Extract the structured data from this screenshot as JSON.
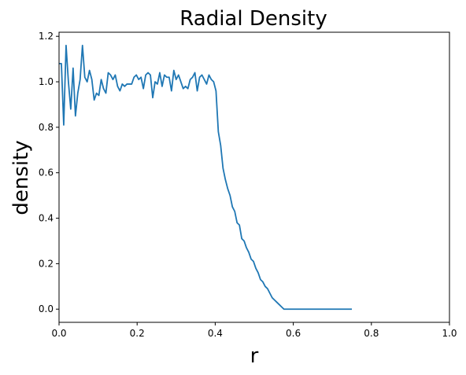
{
  "chart_data": {
    "type": "line",
    "title": "Radial Density",
    "xlabel": "r",
    "ylabel": "density",
    "xlim": [
      0.0,
      1.0
    ],
    "ylim": [
      -0.058,
      1.218
    ],
    "xticks": [
      0.0,
      0.2,
      0.4,
      0.6,
      0.8,
      1.0
    ],
    "xtick_labels": [
      "0.0",
      "0.2",
      "0.4",
      "0.6",
      "0.8",
      "1.0"
    ],
    "yticks": [
      0.0,
      0.2,
      0.4,
      0.6,
      0.8,
      1.0,
      1.2
    ],
    "ytick_labels": [
      "0.0",
      "0.2",
      "0.4",
      "0.6",
      "0.8",
      "1.0",
      "1.2"
    ],
    "grid": false,
    "line_color": "#1f77b4",
    "series": [
      {
        "x": [
          0.0,
          0.006,
          0.012,
          0.018,
          0.024,
          0.03,
          0.036,
          0.042,
          0.048,
          0.054,
          0.06,
          0.066,
          0.072,
          0.078,
          0.084,
          0.09,
          0.096,
          0.102,
          0.108,
          0.114,
          0.12,
          0.126,
          0.132,
          0.138,
          0.144,
          0.15,
          0.156,
          0.162,
          0.168,
          0.174,
          0.18,
          0.186,
          0.192,
          0.198,
          0.204,
          0.21,
          0.216,
          0.222,
          0.228,
          0.234,
          0.24,
          0.246,
          0.252,
          0.258,
          0.264,
          0.27,
          0.276,
          0.282,
          0.288,
          0.294,
          0.3,
          0.306,
          0.312,
          0.318,
          0.324,
          0.33,
          0.336,
          0.342,
          0.348,
          0.354,
          0.36,
          0.366,
          0.372,
          0.378,
          0.384,
          0.39,
          0.396,
          0.402,
          0.408,
          0.414,
          0.42,
          0.426,
          0.432,
          0.438,
          0.444,
          0.45,
          0.456,
          0.462,
          0.468,
          0.474,
          0.48,
          0.486,
          0.492,
          0.498,
          0.504,
          0.51,
          0.516,
          0.522,
          0.528,
          0.534,
          0.54,
          0.546,
          0.552,
          0.558,
          0.564,
          0.57,
          0.576,
          0.582,
          0.588,
          0.594,
          0.6,
          0.606,
          0.612,
          0.618,
          0.624,
          0.63,
          0.636,
          0.642,
          0.648,
          0.654,
          0.66,
          0.666,
          0.672,
          0.678,
          0.684,
          0.69,
          0.696,
          0.702,
          0.708,
          0.714,
          0.72,
          0.726,
          0.732,
          0.738,
          0.744,
          0.75
        ],
        "y": [
          1.08,
          1.08,
          0.81,
          1.16,
          1.0,
          0.88,
          1.06,
          0.85,
          0.95,
          1.01,
          1.16,
          1.02,
          1.0,
          1.05,
          1.01,
          0.92,
          0.95,
          0.94,
          1.01,
          0.97,
          0.95,
          1.04,
          1.03,
          1.01,
          1.03,
          0.98,
          0.96,
          0.99,
          0.98,
          0.99,
          0.99,
          0.99,
          1.02,
          1.03,
          1.01,
          1.02,
          0.97,
          1.03,
          1.04,
          1.03,
          0.93,
          1.0,
          0.99,
          1.04,
          0.98,
          1.03,
          1.02,
          1.02,
          0.96,
          1.05,
          1.01,
          1.03,
          1.0,
          0.97,
          0.98,
          0.97,
          1.01,
          1.02,
          1.04,
          0.96,
          1.02,
          1.03,
          1.01,
          0.99,
          1.03,
          1.01,
          1.0,
          0.96,
          0.78,
          0.72,
          0.62,
          0.57,
          0.53,
          0.5,
          0.45,
          0.43,
          0.38,
          0.37,
          0.31,
          0.3,
          0.27,
          0.25,
          0.22,
          0.21,
          0.18,
          0.16,
          0.13,
          0.12,
          0.1,
          0.09,
          0.07,
          0.05,
          0.04,
          0.03,
          0.02,
          0.01,
          0.0,
          0.0,
          0.0,
          0.0,
          0.0,
          0.0,
          0.0,
          0.0,
          0.0,
          0.0,
          0.0,
          0.0,
          0.0,
          0.0,
          0.0,
          0.0,
          0.0,
          0.0,
          0.0,
          0.0,
          0.0,
          0.0,
          0.0,
          0.0,
          0.0,
          0.0,
          0.0,
          0.0,
          0.0,
          0.0
        ]
      }
    ]
  }
}
